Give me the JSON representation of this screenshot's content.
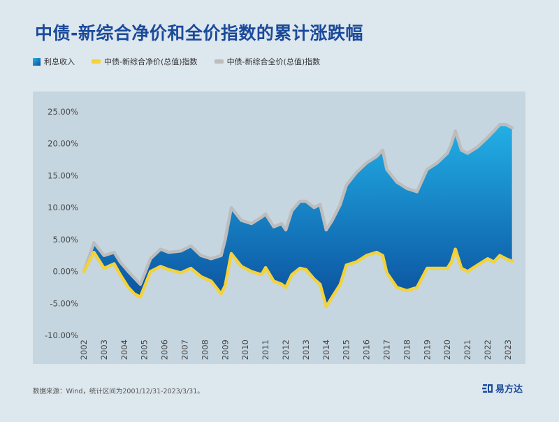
{
  "title": "中债-新综合净价和全价指数的累计涨跌幅",
  "legend": {
    "fill_label": "利息收入",
    "net_label": "中债-新综合净价(总值)指数",
    "full_label": "中债-新综合全价(总值)指数"
  },
  "footer": {
    "source": "数据来源：Wind，统计区间为2001/12/31-2023/3/31。"
  },
  "brand": {
    "name": "易方达"
  },
  "colors": {
    "fill_top": "#22b0e6",
    "fill_bottom": "#0b4f9d",
    "net_line": "#f3d23a",
    "full_line": "#bdbdbd",
    "panel_bg": "#c6d6e0",
    "title": "#1b4a9a"
  },
  "chart_data": {
    "type": "area",
    "title": "中债-新综合净价和全价指数的累计涨跌幅",
    "xlabel": "",
    "ylabel": "",
    "x_tick_labels": [
      "2002",
      "2003",
      "2004",
      "2005",
      "2006",
      "2007",
      "2008",
      "2009",
      "2010",
      "2011",
      "2012",
      "2013",
      "2014",
      "2015",
      "2016",
      "2017",
      "2018",
      "2019",
      "2020",
      "2021",
      "2022",
      "2023"
    ],
    "y_tick_labels": [
      "25.00%",
      "20.00%",
      "15.00%",
      "10.00%",
      "5.00%",
      "0.00%",
      "-5.00%",
      "-10.00%"
    ],
    "ylim": [
      -10,
      25
    ],
    "xlim": [
      2002.0,
      2023.35
    ],
    "grid": false,
    "legend_position": "top-left",
    "x": [
      2002.0,
      2002.5,
      2003.0,
      2003.5,
      2003.8,
      2004.2,
      2004.5,
      2004.8,
      2005.3,
      2005.8,
      2006.2,
      2006.8,
      2007.3,
      2007.8,
      2008.3,
      2008.8,
      2009.0,
      2009.3,
      2009.8,
      2010.3,
      2010.8,
      2011.0,
      2011.4,
      2011.8,
      2012.0,
      2012.3,
      2012.7,
      2013.0,
      2013.4,
      2013.7,
      2014.0,
      2014.3,
      2014.7,
      2015.0,
      2015.5,
      2016.0,
      2016.5,
      2016.8,
      2017.0,
      2017.5,
      2018.0,
      2018.5,
      2019.0,
      2019.5,
      2020.0,
      2020.2,
      2020.4,
      2020.7,
      2021.0,
      2021.5,
      2022.0,
      2022.3,
      2022.6,
      2022.9,
      2023.2
    ],
    "series": [
      {
        "name": "中债-新综合净价(总值)指数",
        "values": [
          0.0,
          3.0,
          0.5,
          1.2,
          -0.5,
          -2.5,
          -3.5,
          -4.0,
          0.0,
          0.8,
          0.3,
          -0.2,
          0.5,
          -0.8,
          -1.5,
          -3.5,
          -2.2,
          2.8,
          0.8,
          0.0,
          -0.5,
          0.6,
          -1.5,
          -2.0,
          -2.5,
          -0.5,
          0.5,
          0.3,
          -1.2,
          -2.0,
          -5.5,
          -4.0,
          -2.0,
          1.0,
          1.5,
          2.5,
          3.0,
          2.5,
          -0.2,
          -2.5,
          -3.0,
          -2.5,
          0.5,
          0.5,
          0.5,
          1.5,
          3.5,
          0.5,
          0.0,
          1.0,
          2.0,
          1.5,
          2.5,
          2.0,
          1.6
        ]
      },
      {
        "name": "中债-新综合全价(总值)指数",
        "values": [
          0.0,
          4.5,
          2.5,
          3.0,
          1.5,
          0.0,
          -1.0,
          -2.0,
          2.0,
          3.5,
          3.0,
          3.2,
          4.0,
          2.5,
          2.0,
          2.5,
          5.0,
          10.0,
          8.0,
          7.5,
          8.5,
          9.0,
          7.0,
          7.5,
          6.5,
          9.5,
          11.0,
          11.0,
          10.0,
          10.5,
          6.5,
          8.0,
          10.5,
          13.5,
          15.5,
          17.0,
          18.0,
          19.0,
          16.0,
          14.0,
          13.0,
          12.5,
          16.0,
          17.0,
          18.5,
          20.0,
          22.0,
          19.0,
          18.5,
          19.5,
          21.0,
          22.0,
          23.0,
          23.0,
          22.5
        ]
      }
    ],
    "fill_series_name": "利息收入"
  }
}
